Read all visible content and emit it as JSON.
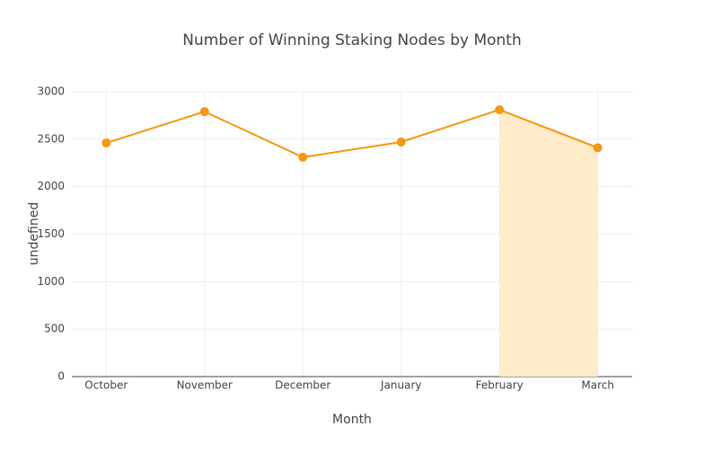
{
  "chart_data": {
    "type": "line",
    "title": "Number of Winning Staking Nodes by Month",
    "x_label": "Month",
    "y_label": "undefined",
    "categories": [
      "October",
      "November",
      "December",
      "January",
      "February",
      "March"
    ],
    "series": [
      {
        "color": "#f5970f",
        "values": [
          2460,
          2790,
          2310,
          2470,
          2810,
          2410
        ]
      }
    ],
    "ylim": [
      0,
      3000
    ],
    "yticks": [
      0,
      500,
      1000,
      1500,
      2000,
      2500,
      3000
    ],
    "grid": true,
    "highlight": {
      "start": 4,
      "end": 5,
      "color": "#feebc9"
    }
  }
}
